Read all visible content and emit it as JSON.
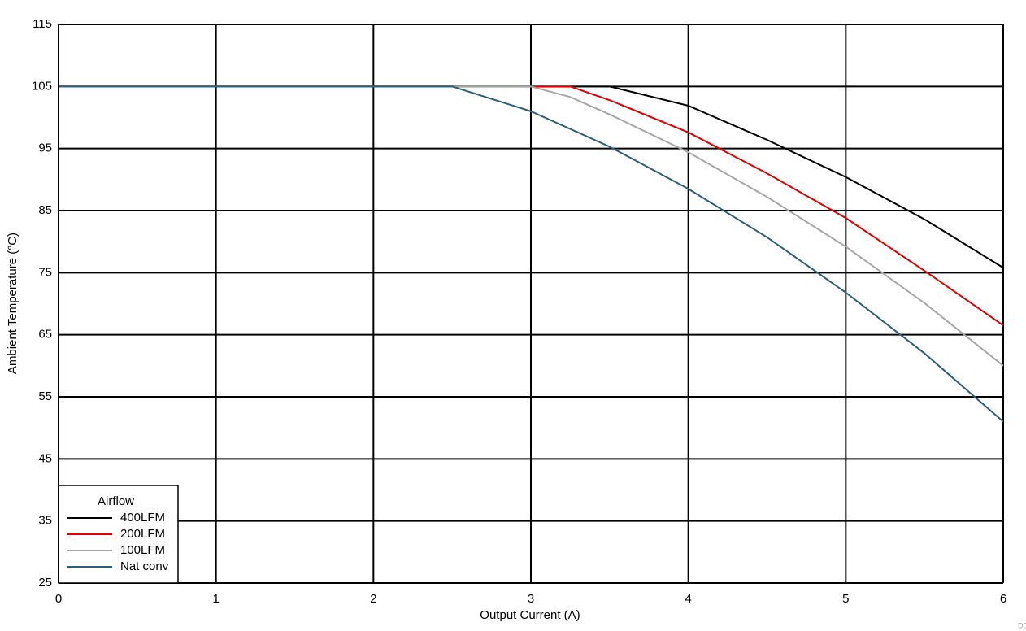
{
  "chart_data": {
    "type": "line",
    "x_label": "Output Current (A)",
    "y_label": "Ambient Temperature (°C)",
    "xlim": [
      0,
      6
    ],
    "xticks": [
      0,
      1,
      2,
      3,
      4,
      5,
      6
    ],
    "ylim": [
      25,
      115
    ],
    "yticks": [
      25,
      35,
      45,
      55,
      65,
      75,
      85,
      95,
      105,
      115
    ],
    "grid": true,
    "legend_title": "Airflow",
    "legend_position": "lower left",
    "corner_note": "D0",
    "series": [
      {
        "name": "400LFM",
        "color": "#000000",
        "x": [
          0,
          3.5,
          4,
          4.5,
          5,
          5.5,
          6
        ],
        "values": [
          105,
          105,
          101.9,
          96.4,
          90.4,
          83.6,
          75.8
        ]
      },
      {
        "name": "200LFM",
        "color": "#e00000",
        "x": [
          0,
          3.25,
          3.5,
          4,
          4.5,
          5,
          5.5,
          6
        ],
        "values": [
          105,
          105,
          102.8,
          97.6,
          91.0,
          83.8,
          75.3,
          66.5
        ]
      },
      {
        "name": "100LFM",
        "color": "#a6a6a6",
        "x": [
          0,
          3,
          3.25,
          3.5,
          4,
          4.5,
          5,
          5.5,
          6
        ],
        "values": [
          105,
          105,
          103.3,
          100.5,
          94.4,
          87.2,
          79.2,
          70.1,
          60.0
        ]
      },
      {
        "name": "Nat conv",
        "color": "#2e5d78",
        "x": [
          0,
          2.5,
          3,
          3.5,
          4,
          4.5,
          5,
          5.5,
          6
        ],
        "values": [
          105,
          105,
          101.0,
          95.3,
          88.5,
          80.7,
          71.8,
          62.0,
          51.0
        ]
      }
    ]
  }
}
